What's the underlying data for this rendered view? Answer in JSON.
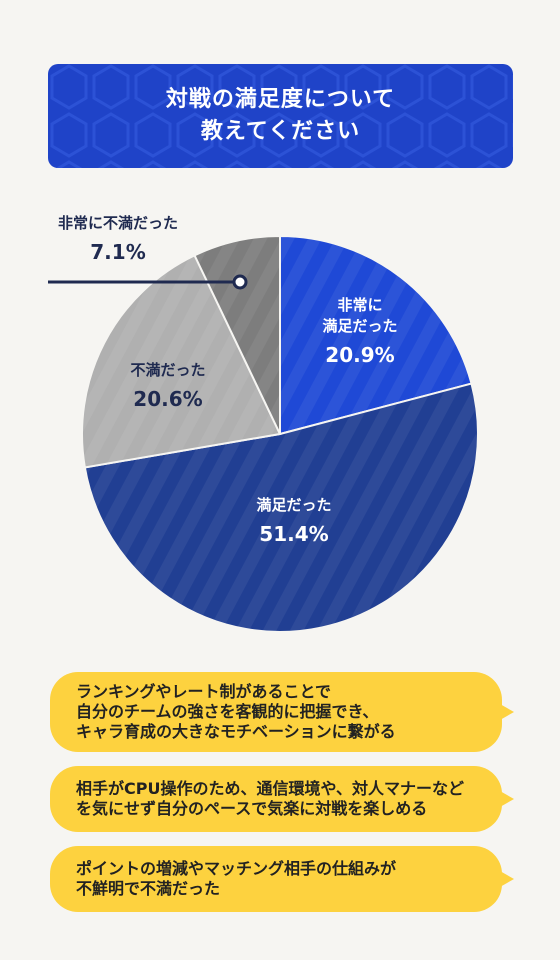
{
  "title": {
    "line1": "対戦の満足度について",
    "line2": "教えてください"
  },
  "chart_data": {
    "type": "pie",
    "start_angle_deg": 0,
    "direction": "clockwise",
    "slices": [
      {
        "label_lines": [
          "非常に",
          "満足だった"
        ],
        "value": 20.9,
        "value_label": "20.9%",
        "color": "#1f49d6",
        "label_color": "#ffffff"
      },
      {
        "label_lines": [
          "満足だった"
        ],
        "value": 51.4,
        "value_label": "51.4%",
        "color": "#213f93",
        "label_color": "#ffffff"
      },
      {
        "label_lines": [
          "不満だった"
        ],
        "value": 20.6,
        "value_label": "20.6%",
        "color": "#b0b0b0",
        "label_color": "#1f2a50"
      },
      {
        "label_lines": [
          "非常に不満だった"
        ],
        "value": 7.1,
        "value_label": "7.1%",
        "color": "#7d7d7d",
        "label_color": "#1f2a50"
      }
    ],
    "callout_color": "#1f2a50"
  },
  "comments": [
    {
      "lines": [
        "ランキングやレート制があることで",
        "自分のチームの強さを客観的に把握でき、",
        "キャラ育成の大きなモチベーションに繋がる"
      ]
    },
    {
      "lines": [
        "相手がCPU操作のため、通信環境や、対人マナーなど",
        "を気にせず自分のペースで気楽に対戦を楽しめる"
      ]
    },
    {
      "lines": [
        "ポイントの増減やマッチング相手の仕組みが",
        "不鮮明で不満だった"
      ]
    }
  ]
}
